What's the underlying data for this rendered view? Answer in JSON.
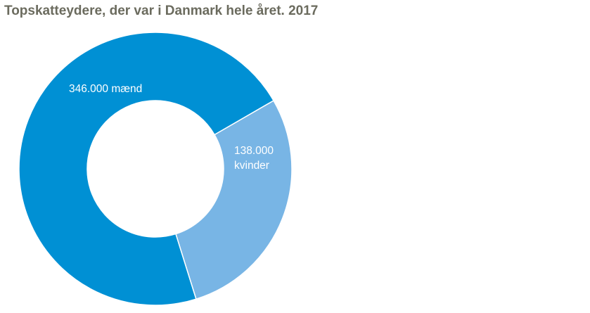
{
  "chart_data": {
    "type": "pie",
    "variant": "donut",
    "title": "Topskatteydere, der var i Danmark hele året. 2017",
    "slices": [
      {
        "category": "mænd",
        "value": 346000,
        "label_lines": [
          "346.000 mænd"
        ],
        "color": "#0090d4"
      },
      {
        "category": "kvinder",
        "value": 138000,
        "label_lines": [
          "138.000",
          "kvinder"
        ],
        "color": "#78b5e5"
      }
    ],
    "legend": "none"
  }
}
